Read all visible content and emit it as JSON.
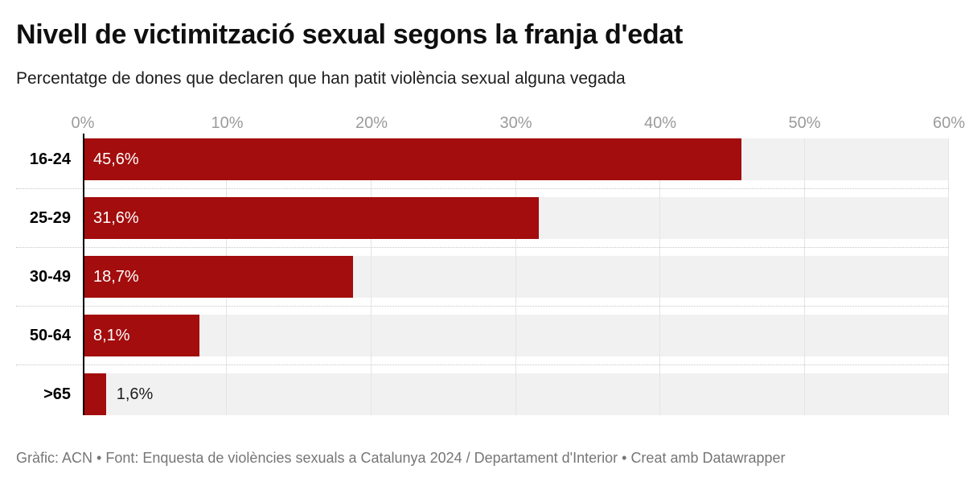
{
  "header": {
    "title": "Nivell de victimització sexual segons la franja d'edat",
    "subtitle": "Percentatge de dones que declaren que han patit violència sexual alguna vegada"
  },
  "chart_data": {
    "type": "bar",
    "orientation": "horizontal",
    "title": "Nivell de victimització sexual segons la franja d'edat",
    "subtitle": "Percentatge de dones que declaren que han patit violència sexual alguna vegada",
    "categories": [
      "16-24",
      "25-29",
      "30-49",
      "50-64",
      ">65"
    ],
    "values": [
      45.6,
      31.6,
      18.7,
      8.1,
      1.6
    ],
    "value_labels": [
      "45,6%",
      "31,6%",
      "18,7%",
      "8,1%",
      "1,6%"
    ],
    "value_label_inside": [
      true,
      true,
      true,
      true,
      false
    ],
    "xlim": [
      0,
      60
    ],
    "x_tick_values": [
      0,
      10,
      20,
      30,
      40,
      50,
      60
    ],
    "x_tick_labels": [
      "0%",
      "10%",
      "20%",
      "30%",
      "40%",
      "50%",
      "60%"
    ],
    "grid": "vertical gridlines every 10%, dotted horizontal row separators",
    "legend": "none"
  },
  "colors": {
    "bar": "#a30d0d",
    "row_bg": "#f1f1f1",
    "grid_line": "#e4e4e4",
    "axis_line": "#000000",
    "tick_text": "#9b9b9b",
    "value_inside": "#ffffff",
    "value_outside": "#1d1d1d",
    "separator": "#c4c4c4",
    "footer_text": "#767676"
  },
  "footer": {
    "text": "Gràfic: ACN • Font: Enquesta de violències sexuals a Catalunya 2024 / Departament d'Interior • Creat amb Datawrapper"
  }
}
